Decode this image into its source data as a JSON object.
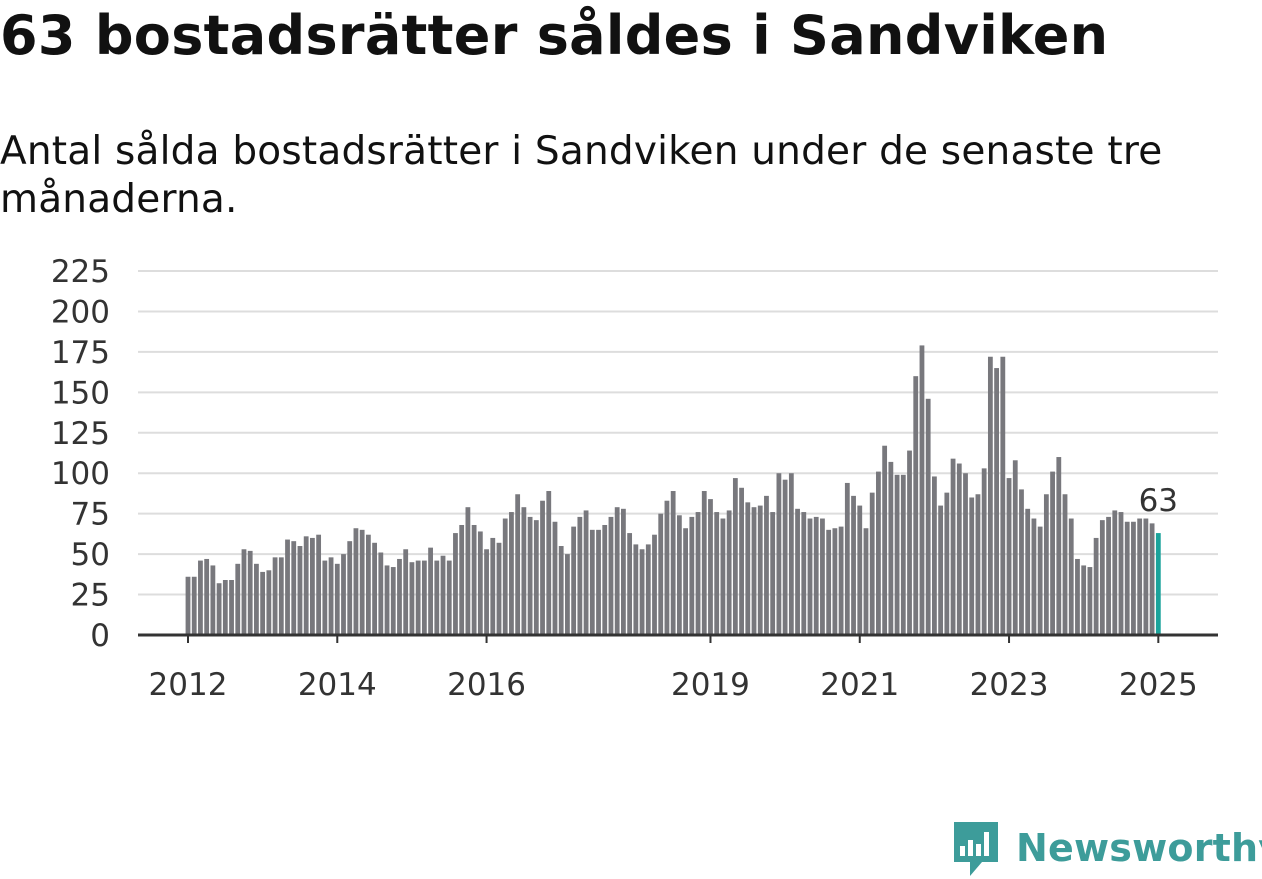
{
  "title": "63 bostadsrätter såldes i Sandviken",
  "subtitle": "Antal sålda bostadsrätter i Sandviken under de senaste tre månaderna.",
  "brand": {
    "name": "Newsworthy",
    "color": "#3d9c9a"
  },
  "colors": {
    "bar": "#78787d",
    "highlight": "#1ba39b",
    "grid": "#dddddd",
    "axis": "#333333"
  },
  "chart_data": {
    "type": "bar",
    "title": "63 bostadsrätter såldes i Sandviken",
    "ylim": [
      0,
      225
    ],
    "yticks": [
      0,
      25,
      50,
      75,
      100,
      125,
      150,
      175,
      200,
      225
    ],
    "xticks": [
      "2012",
      "2014",
      "2016",
      "2019",
      "2021",
      "2023",
      "2025"
    ],
    "grid": true,
    "start_month": "2012-01",
    "end_month": "2025-01",
    "last_value_label": "63",
    "values": [
      36,
      36,
      46,
      47,
      43,
      32,
      34,
      34,
      44,
      53,
      52,
      44,
      39,
      40,
      48,
      48,
      59,
      58,
      55,
      61,
      60,
      62,
      46,
      48,
      44,
      50,
      58,
      66,
      65,
      62,
      57,
      51,
      43,
      42,
      47,
      53,
      45,
      46,
      46,
      54,
      46,
      49,
      46,
      63,
      68,
      79,
      68,
      64,
      53,
      60,
      57,
      72,
      76,
      87,
      79,
      73,
      71,
      83,
      89,
      70,
      55,
      50,
      67,
      73,
      77,
      65,
      65,
      68,
      73,
      79,
      78,
      63,
      56,
      53,
      56,
      62,
      75,
      83,
      89,
      74,
      66,
      73,
      76,
      89,
      84,
      76,
      72,
      77,
      97,
      91,
      82,
      79,
      80,
      86,
      76,
      100,
      96,
      100,
      78,
      76,
      72,
      73,
      72,
      65,
      66,
      67,
      94,
      86,
      80,
      66,
      88,
      101,
      117,
      107,
      99,
      99,
      114,
      160,
      179,
      146,
      98,
      80,
      88,
      109,
      106,
      100,
      85,
      87,
      103,
      172,
      165,
      172,
      97,
      108,
      90,
      78,
      72,
      67,
      87,
      101,
      110,
      87,
      72,
      47,
      43,
      42,
      60,
      71,
      73,
      77,
      76,
      70,
      70,
      72,
      72,
      69,
      63
    ]
  }
}
